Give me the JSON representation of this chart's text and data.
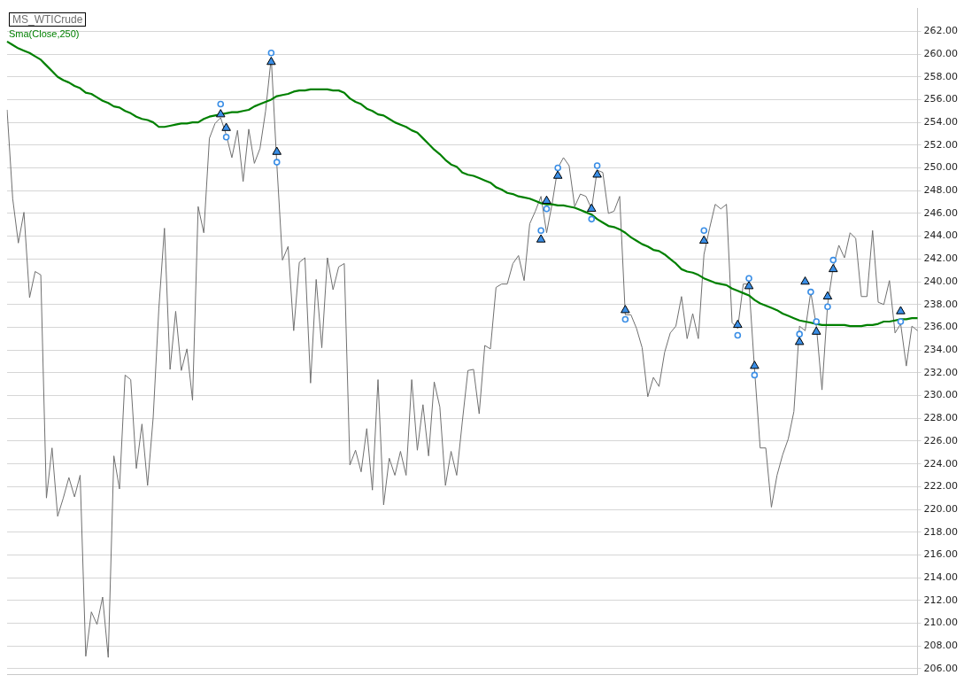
{
  "chart_data": {
    "type": "line",
    "legend": "top left",
    "grid": "y",
    "tick_labels": "y",
    "marker": "none",
    "categories": [
      null,
      null,
      null,
      null,
      null,
      null,
      null,
      null,
      null,
      null,
      null,
      null,
      null,
      null,
      null,
      null,
      null,
      null,
      null,
      null,
      null,
      null,
      null,
      null,
      null,
      null,
      null,
      null,
      null,
      null,
      null,
      null,
      null,
      null,
      null,
      null,
      null,
      null,
      null,
      null,
      null,
      null,
      null,
      null,
      null,
      null,
      null,
      null,
      null,
      null,
      null,
      null,
      null,
      null,
      null,
      null,
      null,
      null,
      null,
      null,
      null,
      null,
      null,
      null,
      null,
      null,
      null,
      null,
      null,
      null,
      null,
      null,
      null,
      null,
      null,
      null,
      null,
      null,
      null,
      null,
      null,
      null,
      null,
      null,
      null,
      null,
      null,
      null,
      null,
      null,
      null,
      null,
      null,
      null,
      null,
      null,
      null,
      null,
      null,
      null,
      null,
      null,
      null,
      null,
      null,
      null,
      null,
      null,
      null,
      null,
      null,
      null,
      null,
      null,
      null,
      null,
      null,
      null,
      null,
      null,
      null,
      null,
      null,
      null,
      null,
      null,
      null,
      null,
      null,
      null,
      null,
      null,
      null,
      null,
      null,
      null,
      null,
      null,
      null,
      null,
      null,
      null,
      null,
      null,
      null,
      null,
      null,
      null,
      null,
      null,
      null,
      null,
      null,
      null,
      null,
      null,
      null,
      null,
      null,
      null,
      null,
      null,
      null
    ],
    "ylim": [
      205.5,
      264
    ],
    "yticks": [
      {
        "value": 206,
        "label": "206.00"
      },
      {
        "value": 208,
        "label": "208.00"
      },
      {
        "value": 210,
        "label": "210.00"
      },
      {
        "value": 212,
        "label": "212.00"
      },
      {
        "value": 214,
        "label": "214.00"
      },
      {
        "value": 216,
        "label": "216.00"
      },
      {
        "value": 218,
        "label": "218.00"
      },
      {
        "value": 220,
        "label": "220.00"
      },
      {
        "value": 222,
        "label": "222.00"
      },
      {
        "value": 224,
        "label": "224.00"
      },
      {
        "value": 226,
        "label": "226.00"
      },
      {
        "value": 228,
        "label": "228.00"
      },
      {
        "value": 230,
        "label": "230.00"
      },
      {
        "value": 232,
        "label": "232.00"
      },
      {
        "value": 234,
        "label": "234.00"
      },
      {
        "value": 236,
        "label": "236.00"
      },
      {
        "value": 238,
        "label": "238.00"
      },
      {
        "value": 240,
        "label": "240.00"
      },
      {
        "value": 242,
        "label": "242.00"
      },
      {
        "value": 244,
        "label": "244.00"
      },
      {
        "value": 246,
        "label": "246.00"
      },
      {
        "value": 248,
        "label": "248.00"
      },
      {
        "value": 250,
        "label": "250.00"
      },
      {
        "value": 252,
        "label": "252.00"
      },
      {
        "value": 254,
        "label": "254.00"
      },
      {
        "value": 256,
        "label": "256.00"
      },
      {
        "value": 258,
        "label": "258.00"
      },
      {
        "value": 260,
        "label": "260.00"
      },
      {
        "value": 262,
        "label": "262.00"
      }
    ],
    "series": [
      {
        "name": "MS_WTICrude",
        "color": "#707070",
        "values": [
          255.1,
          247.3,
          243.4,
          246.1,
          238.6,
          240.9,
          240.6,
          221.0,
          225.4,
          219.4,
          221.0,
          222.8,
          221.1,
          223.0,
          207.1,
          211.0,
          209.9,
          212.3,
          207.0,
          224.7,
          221.8,
          231.8,
          231.4,
          223.6,
          227.5,
          222.1,
          228.1,
          237.6,
          244.7,
          232.3,
          237.4,
          232.2,
          234.1,
          229.6,
          246.6,
          244.3,
          252.6,
          253.9,
          254.4,
          252.9,
          250.9,
          253.3,
          248.8,
          253.4,
          250.4,
          251.7,
          255.0,
          259.7,
          250.3,
          241.9,
          243.1,
          235.7,
          241.7,
          242.1,
          231.1,
          240.2,
          234.2,
          242.1,
          239.3,
          241.3,
          241.6,
          223.9,
          225.2,
          223.3,
          227.1,
          221.7,
          231.4,
          220.4,
          224.5,
          223.0,
          225.1,
          223.0,
          231.4,
          225.2,
          229.2,
          224.7,
          231.2,
          229.0,
          222.1,
          225.1,
          223.0,
          227.7,
          232.2,
          232.3,
          228.4,
          234.4,
          234.1,
          239.5,
          239.8,
          239.8,
          241.6,
          242.3,
          240.1,
          245.1,
          246.2,
          247.5,
          244.3,
          246.9,
          250.0,
          250.9,
          250.2,
          246.6,
          247.7,
          247.5,
          246.4,
          249.8,
          249.6,
          246.0,
          246.2,
          247.5,
          237.1,
          237.1,
          235.9,
          234.2,
          229.9,
          231.6,
          230.8,
          233.8,
          235.5,
          236.1,
          238.7,
          235.0,
          237.2,
          235.0,
          242.4,
          244.7,
          246.8,
          246.4,
          246.8,
          236.4,
          235.9,
          239.8,
          239.8,
          232.3,
          225.4,
          225.4,
          220.2,
          223.0,
          224.8,
          226.2,
          228.6,
          236.1,
          235.7,
          239.1,
          236.1,
          230.5,
          238.0,
          241.3,
          243.2,
          242.1,
          244.3,
          243.8,
          238.7,
          238.7,
          244.5,
          238.2,
          238.0,
          240.1,
          235.5,
          236.3,
          232.6,
          236.1,
          235.7
        ]
      },
      {
        "name": "Sma(Close,250)",
        "color": "#008000",
        "values": [
          261.1,
          260.8,
          260.5,
          260.3,
          260.1,
          259.8,
          259.5,
          259.0,
          258.5,
          258.0,
          257.7,
          257.5,
          257.2,
          257.0,
          256.6,
          256.5,
          256.2,
          255.9,
          255.7,
          255.4,
          255.3,
          255.0,
          254.8,
          254.5,
          254.3,
          254.2,
          254.0,
          253.6,
          253.6,
          253.7,
          253.8,
          253.9,
          253.9,
          254.0,
          254.0,
          254.3,
          254.5,
          254.6,
          254.7,
          254.8,
          254.9,
          254.9,
          255.0,
          255.1,
          255.4,
          255.6,
          255.8,
          256.0,
          256.3,
          256.4,
          256.5,
          256.7,
          256.8,
          256.8,
          256.9,
          256.9,
          256.9,
          256.9,
          256.8,
          256.8,
          256.6,
          256.1,
          255.8,
          255.6,
          255.2,
          255.0,
          254.7,
          254.6,
          254.3,
          254.0,
          253.8,
          253.6,
          253.3,
          253.1,
          252.6,
          252.1,
          251.6,
          251.2,
          250.7,
          250.3,
          250.1,
          249.6,
          249.4,
          249.3,
          249.1,
          248.9,
          248.7,
          248.3,
          248.1,
          247.8,
          247.7,
          247.5,
          247.4,
          247.3,
          247.1,
          246.9,
          246.8,
          246.8,
          246.7,
          246.7,
          246.6,
          246.5,
          246.3,
          246.1,
          245.9,
          245.5,
          245.2,
          244.9,
          244.8,
          244.6,
          244.3,
          243.9,
          243.6,
          243.3,
          243.1,
          242.8,
          242.7,
          242.4,
          242.0,
          241.6,
          241.1,
          240.9,
          240.8,
          240.6,
          240.3,
          240.1,
          239.9,
          239.8,
          239.7,
          239.4,
          239.2,
          239.0,
          238.8,
          238.4,
          238.1,
          237.9,
          237.7,
          237.5,
          237.2,
          237.0,
          236.8,
          236.6,
          236.5,
          236.4,
          236.3,
          236.2,
          236.2,
          236.2,
          236.2,
          236.2,
          236.1,
          236.1,
          236.1,
          236.2,
          236.2,
          236.3,
          236.5,
          236.5,
          236.6,
          236.7,
          236.7,
          236.8,
          236.8
        ]
      },
      {
        "type": "scatter",
        "marker": "triangle",
        "color": "#3a8ee6",
        "values": [
          null,
          null,
          null,
          null,
          null,
          null,
          null,
          null,
          null,
          null,
          null,
          null,
          null,
          null,
          null,
          null,
          null,
          null,
          null,
          null,
          null,
          null,
          null,
          null,
          null,
          null,
          null,
          null,
          null,
          null,
          null,
          null,
          null,
          null,
          null,
          null,
          null,
          null,
          254.7,
          null,
          null,
          null,
          null,
          null,
          null,
          null,
          null,
          259.3,
          null,
          null,
          null,
          null,
          null,
          null,
          null,
          null,
          null,
          null,
          null,
          null,
          null,
          null,
          null,
          null,
          null,
          null,
          null,
          null,
          null,
          null,
          null,
          null,
          null,
          null,
          null,
          null,
          null,
          null,
          null,
          null,
          null,
          null,
          null,
          null,
          null,
          null,
          null,
          null,
          null,
          null,
          null,
          null,
          null,
          null,
          null,
          243.7,
          null,
          null,
          249.3,
          null,
          null,
          null,
          null,
          null,
          null,
          249.4,
          null,
          null,
          null,
          null,
          null,
          null,
          null,
          null,
          null,
          null,
          null,
          null,
          null,
          null,
          null,
          null,
          null,
          null,
          243.6,
          null,
          null,
          null,
          null,
          null,
          null,
          null,
          239.6,
          null,
          null,
          null,
          null,
          null,
          null,
          null,
          null,
          234.7,
          null,
          null,
          235.6,
          null,
          null,
          241.1,
          null,
          null,
          null,
          null,
          null,
          null,
          null,
          null,
          null,
          null,
          null,
          null,
          null,
          null,
          null
        ]
      },
      {
        "type": "scatter",
        "marker": "triangle",
        "color": "#3a8ee6",
        "values": [
          null,
          null,
          null,
          null,
          null,
          null,
          null,
          null,
          null,
          null,
          null,
          null,
          null,
          null,
          null,
          null,
          null,
          null,
          null,
          null,
          null,
          null,
          null,
          null,
          null,
          null,
          null,
          null,
          null,
          null,
          null,
          null,
          null,
          null,
          null,
          null,
          null,
          null,
          null,
          253.5,
          null,
          null,
          null,
          null,
          null,
          null,
          null,
          null,
          251.4,
          null,
          null,
          null,
          null,
          null,
          null,
          null,
          null,
          null,
          null,
          null,
          null,
          null,
          null,
          null,
          null,
          null,
          null,
          null,
          null,
          null,
          null,
          null,
          null,
          null,
          null,
          null,
          null,
          null,
          null,
          null,
          null,
          null,
          null,
          null,
          null,
          null,
          null,
          null,
          null,
          null,
          null,
          null,
          null,
          null,
          null,
          null,
          247.1,
          null,
          null,
          null,
          null,
          null,
          null,
          null,
          246.4,
          null,
          null,
          null,
          null,
          null,
          237.5,
          null,
          null,
          null,
          null,
          null,
          null,
          null,
          null,
          null,
          null,
          null,
          null,
          null,
          null,
          null,
          null,
          null,
          null,
          null,
          236.2,
          null,
          null,
          232.6,
          null,
          null,
          null,
          null,
          null,
          null,
          null,
          null,
          240.0,
          null,
          null,
          null,
          238.7,
          null,
          null,
          null,
          null,
          null,
          null,
          null,
          null,
          null,
          null,
          null,
          null,
          237.4,
          null,
          null,
          null
        ]
      },
      {
        "type": "scatter",
        "marker": "circle",
        "color": "#3a8ee6",
        "values": [
          null,
          null,
          null,
          null,
          null,
          null,
          null,
          null,
          null,
          null,
          null,
          null,
          null,
          null,
          null,
          null,
          null,
          null,
          null,
          null,
          null,
          null,
          null,
          null,
          null,
          null,
          null,
          null,
          null,
          null,
          null,
          null,
          null,
          null,
          null,
          null,
          null,
          null,
          255.6,
          252.7,
          null,
          null,
          null,
          null,
          null,
          null,
          null,
          260.1,
          250.5,
          null,
          null,
          null,
          null,
          null,
          null,
          null,
          null,
          null,
          null,
          null,
          null,
          null,
          null,
          null,
          null,
          null,
          null,
          null,
          null,
          null,
          null,
          null,
          null,
          null,
          null,
          null,
          null,
          null,
          null,
          null,
          null,
          null,
          null,
          null,
          null,
          null,
          null,
          null,
          null,
          null,
          null,
          null,
          null,
          null,
          null,
          244.5,
          246.4,
          null,
          250.0,
          null,
          null,
          null,
          null,
          null,
          245.5,
          250.2,
          null,
          null,
          null,
          null,
          236.7,
          null,
          null,
          null,
          null,
          null,
          null,
          null,
          null,
          null,
          null,
          null,
          null,
          null,
          244.5,
          null,
          null,
          null,
          null,
          null,
          235.3,
          null,
          240.3,
          231.8,
          null,
          null,
          null,
          null,
          null,
          null,
          null,
          235.4,
          null,
          239.1,
          236.5,
          null,
          237.8,
          241.9,
          null,
          null,
          null,
          null,
          null,
          null,
          null,
          null,
          null,
          null,
          null,
          236.5,
          null,
          null,
          null
        ]
      }
    ]
  }
}
